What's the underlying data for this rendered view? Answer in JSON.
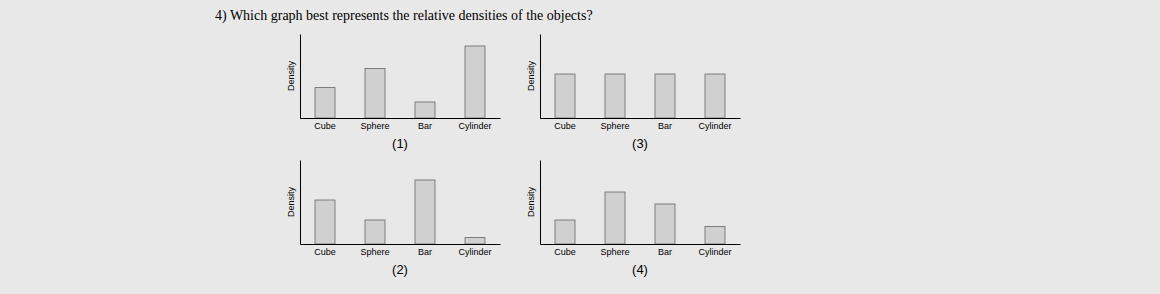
{
  "title": "4)  Which graph best represents the relative densities of the objects?",
  "chart_data": [
    {
      "type": "bar",
      "title": "(1)",
      "categories": [
        "Cube",
        "Sphere",
        "Bar",
        "Cylinder"
      ],
      "values": [
        0.38,
        0.62,
        0.2,
        0.9
      ],
      "ylabel": "Density",
      "color": "#d0d0d0",
      "ylim": [
        0,
        1.05
      ],
      "tick_labels": "x",
      "grid": false
    },
    {
      "type": "bar",
      "title": "(2)",
      "categories": [
        "Cube",
        "Sphere",
        "Bar",
        "Cylinder"
      ],
      "values": [
        0.55,
        0.3,
        0.8,
        0.08
      ],
      "ylabel": "Density",
      "color": "#d0d0d0",
      "ylim": [
        0,
        1.05
      ],
      "tick_labels": "x",
      "grid": false
    },
    {
      "type": "bar",
      "title": "(3)",
      "categories": [
        "Cube",
        "Sphere",
        "Bar",
        "Cylinder"
      ],
      "values": [
        0.55,
        0.55,
        0.55,
        0.55
      ],
      "ylabel": "Density",
      "color": "#d0d0d0",
      "ylim": [
        0,
        1.05
      ],
      "tick_labels": "x",
      "grid": false
    },
    {
      "type": "bar",
      "title": "(4)",
      "categories": [
        "Cube",
        "Sphere",
        "Bar",
        "Cylinder"
      ],
      "values": [
        0.3,
        0.65,
        0.5,
        0.22
      ],
      "ylabel": "Density",
      "color": "#d0d0d0",
      "ylim": [
        0,
        1.05
      ],
      "tick_labels": "x",
      "grid": false
    }
  ]
}
